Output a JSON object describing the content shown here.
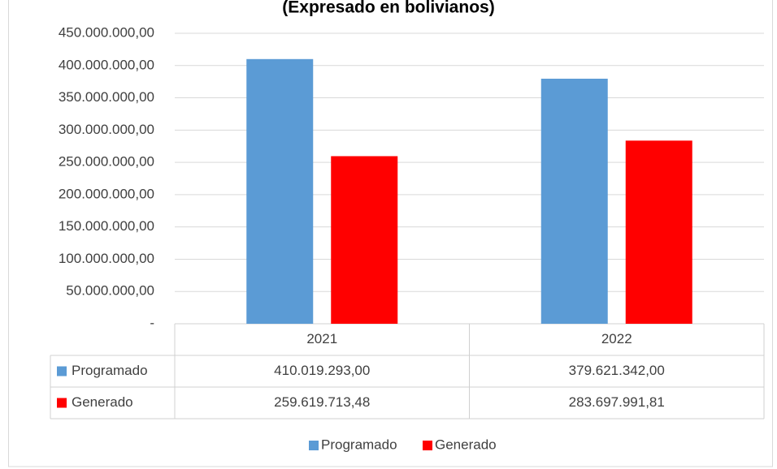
{
  "chart_data": {
    "type": "bar",
    "title": "(Expresado en bolivianos)",
    "categories": [
      "2021",
      "2022"
    ],
    "series": [
      {
        "name": "Programado",
        "color": "#5b9bd5",
        "values": [
          410019293.0,
          379621342.0
        ],
        "value_labels": [
          "410.019.293,00",
          "379.621.342,00"
        ]
      },
      {
        "name": "Generado",
        "color": "#ff0000",
        "values": [
          259619713.48,
          283697991.81
        ],
        "value_labels": [
          "259.619.713,48",
          "283.697.991,81"
        ]
      }
    ],
    "ylim": [
      0,
      450000000
    ],
    "yticks": [
      {
        "value": 0,
        "label": "-"
      },
      {
        "value": 50000000,
        "label": "50.000.000,00"
      },
      {
        "value": 100000000,
        "label": "100.000.000,00"
      },
      {
        "value": 150000000,
        "label": "150.000.000,00"
      },
      {
        "value": 200000000,
        "label": "200.000.000,00"
      },
      {
        "value": 250000000,
        "label": "250.000.000,00"
      },
      {
        "value": 300000000,
        "label": "300.000.000,00"
      },
      {
        "value": 350000000,
        "label": "350.000.000,00"
      },
      {
        "value": 400000000,
        "label": "400.000.000,00"
      },
      {
        "value": 450000000,
        "label": "450.000.000,00"
      }
    ],
    "grid": true,
    "legend": "bottom"
  }
}
